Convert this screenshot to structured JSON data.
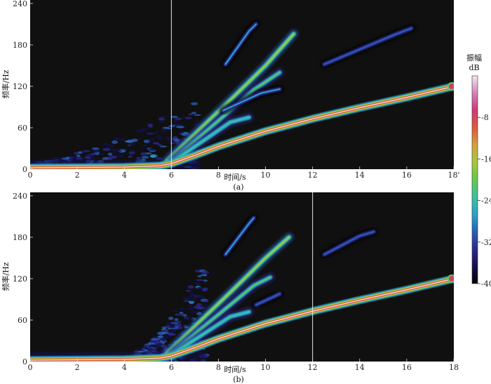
{
  "chart_data": [
    {
      "type": "heatmap",
      "subtype": "spectrogram",
      "panel_label": "(a)",
      "xlabel": "时间/s",
      "ylabel": "频率/Hz",
      "xlim": [
        0,
        18
      ],
      "ylim": [
        0,
        245
      ],
      "xticks": [
        0,
        2,
        4,
        6,
        8,
        10,
        12,
        14,
        16,
        18
      ],
      "xtick_labels": [
        "0",
        "2",
        "4",
        "6",
        "8",
        "10",
        "12",
        "14",
        "16",
        "18'"
      ],
      "yticks": [
        0,
        60,
        120,
        180,
        240
      ],
      "ytick_labels": [
        "0",
        "60",
        "120",
        "180",
        "240"
      ],
      "marker_time": 6,
      "fundamental": [
        [
          0,
          2
        ],
        [
          4,
          3
        ],
        [
          5.5,
          5
        ],
        [
          6,
          8
        ],
        [
          7,
          20
        ],
        [
          8,
          33
        ],
        [
          10,
          55
        ],
        [
          12,
          73
        ],
        [
          14,
          89
        ],
        [
          16,
          104
        ],
        [
          18,
          120
        ]
      ],
      "harmonics": [
        {
          "points": [
            [
              5.8,
              12
            ],
            [
              8.5,
              100
            ],
            [
              10,
              150
            ],
            [
              11.2,
              196
            ]
          ],
          "level": -22
        },
        {
          "points": [
            [
              6,
              12
            ],
            [
              8,
              70
            ],
            [
              9.5,
              115
            ],
            [
              10.6,
              140
            ]
          ],
          "level": -26
        },
        {
          "points": [
            [
              6.2,
              14
            ],
            [
              8.5,
              68
            ],
            [
              9.3,
              75
            ]
          ],
          "level": -27
        },
        {
          "points": [
            [
              8.2,
              85
            ],
            [
              9.8,
              110
            ],
            [
              10.6,
              116
            ]
          ],
          "level": -33
        },
        {
          "points": [
            [
              8.3,
              152
            ],
            [
              9.3,
              200
            ],
            [
              9.6,
              210
            ]
          ],
          "level": -32
        },
        {
          "points": [
            [
              12.5,
              152
            ],
            [
              15.5,
              195
            ],
            [
              16.2,
              204
            ]
          ],
          "level": -35
        }
      ],
      "noise_cloud": {
        "t_range": [
          0,
          7.2
        ],
        "f_max": 95
      }
    },
    {
      "type": "heatmap",
      "subtype": "spectrogram",
      "panel_label": "(b)",
      "xlabel": "时间/s",
      "ylabel": "频率/Hz",
      "xlim": [
        0,
        18
      ],
      "ylim": [
        0,
        245
      ],
      "xticks": [
        0,
        2,
        4,
        6,
        8,
        10,
        12,
        14,
        16,
        18
      ],
      "xtick_labels": [
        "0",
        "2",
        "4",
        "6",
        "8",
        "10",
        "12",
        "14",
        "16",
        "18"
      ],
      "yticks": [
        0,
        60,
        120,
        180,
        240
      ],
      "ytick_labels": [
        "0",
        "60",
        "120",
        "180",
        "240"
      ],
      "marker_time": 12,
      "fundamental": [
        [
          0,
          2
        ],
        [
          4,
          3
        ],
        [
          5.5,
          5
        ],
        [
          6,
          8
        ],
        [
          7,
          20
        ],
        [
          8,
          33
        ],
        [
          10,
          55
        ],
        [
          12,
          73
        ],
        [
          14,
          89
        ],
        [
          16,
          104
        ],
        [
          18,
          120
        ]
      ],
      "harmonics": [
        {
          "points": [
            [
              5.8,
              12
            ],
            [
              8.5,
              100
            ],
            [
              10,
              150
            ],
            [
              11,
              180
            ]
          ],
          "level": -22
        },
        {
          "points": [
            [
              6,
              12
            ],
            [
              8,
              68
            ],
            [
              9.5,
              110
            ],
            [
              10.2,
              122
            ]
          ],
          "level": -26
        },
        {
          "points": [
            [
              6.2,
              14
            ],
            [
              8.5,
              65
            ],
            [
              9.3,
              72
            ]
          ],
          "level": -27
        },
        {
          "points": [
            [
              8.3,
              155
            ],
            [
              9.3,
              200
            ],
            [
              9.5,
              208
            ]
          ],
          "level": -32
        },
        {
          "points": [
            [
              9.6,
              82
            ],
            [
              10.6,
              98
            ]
          ],
          "level": -34
        },
        {
          "points": [
            [
              12.5,
              155
            ],
            [
              14,
              182
            ],
            [
              14.6,
              188
            ]
          ],
          "level": -34
        }
      ],
      "noise_cloud": {
        "t_range": [
          4.3,
          7.5
        ],
        "f_max": 145
      }
    }
  ],
  "colorbar": {
    "title_line1": "振幅",
    "title_line2": "dB",
    "range": [
      -40,
      0
    ],
    "ticks": [
      -8,
      -16,
      -24,
      -32,
      -40
    ],
    "tick_labels": [
      "-8",
      "-16",
      "-24",
      "-32",
      "-40"
    ],
    "stops": [
      "#000000",
      "#14104a",
      "#2b2a8e",
      "#2a5fb6",
      "#2aa3c9",
      "#3cc2a0",
      "#66c84c",
      "#a6c93c",
      "#d4a23a",
      "#dc5a3e",
      "#cf3a76",
      "#d780b8",
      "#f3e6f2"
    ]
  }
}
